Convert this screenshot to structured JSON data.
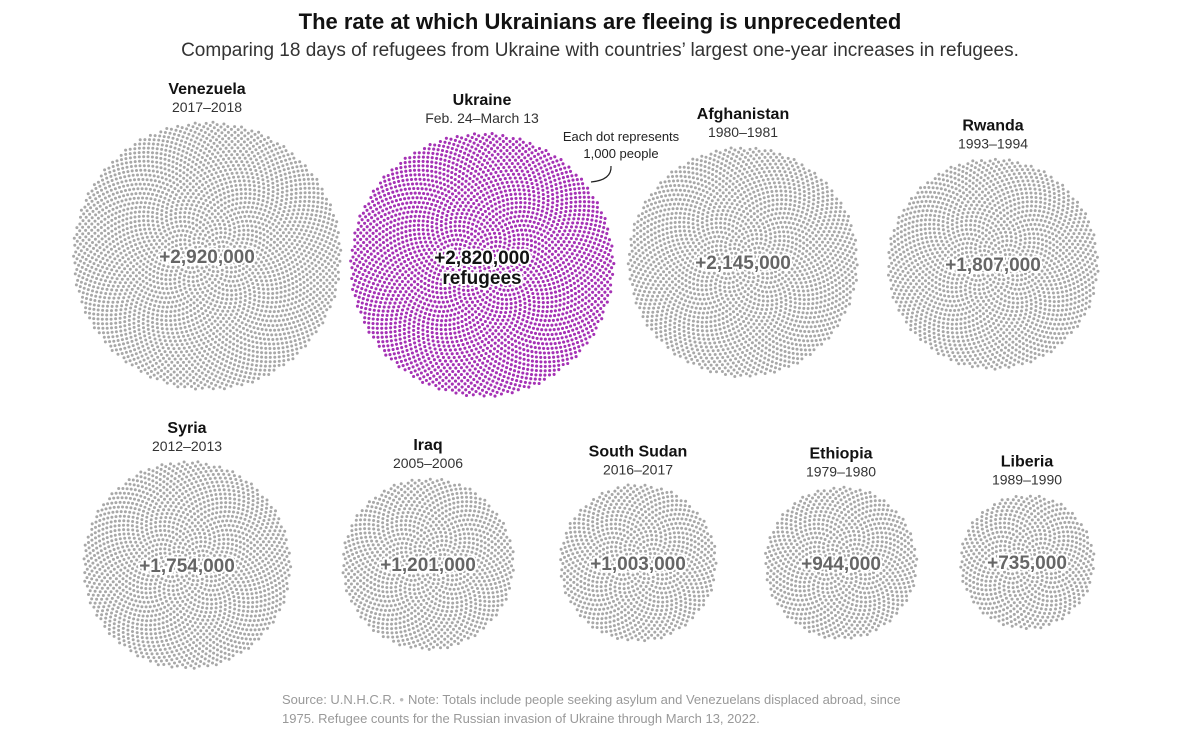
{
  "header": {
    "title": "The rate at which Ukrainians are fleeing is unprecedented",
    "subtitle": "Comparing 18 days of refugees from Ukraine with countries’ largest one-year increases in refugees."
  },
  "annotation": {
    "line1": "Each dot represents",
    "line2": "1,000 people"
  },
  "footer": {
    "source": "Source: U.N.H.C.R.",
    "note": "Note: Totals include people seeking asylum and Venezuelans displaced abroad, since 1975. Refugee counts for the Russian invasion of Ukraine through March 13, 2022."
  },
  "colors": {
    "highlight": "#a532b5",
    "default_dots": "#a8a8a8"
  },
  "chart_data": {
    "type": "dot-cluster",
    "units_per_dot": 1000,
    "series": [
      {
        "country": "Venezuela",
        "period": "2017–2018",
        "value": 2920000,
        "label": "+2,920,000",
        "highlight": false
      },
      {
        "country": "Ukraine",
        "period": "Feb. 24–March 13",
        "value": 2820000,
        "label": "+2,820,000",
        "label2": "refugees",
        "highlight": true
      },
      {
        "country": "Afghanistan",
        "period": "1980–1981",
        "value": 2145000,
        "label": "+2,145,000",
        "highlight": false
      },
      {
        "country": "Rwanda",
        "period": "1993–1994",
        "value": 1807000,
        "label": "+1,807,000",
        "highlight": false
      },
      {
        "country": "Syria",
        "period": "2012–2013",
        "value": 1754000,
        "label": "+1,754,000",
        "highlight": false
      },
      {
        "country": "Iraq",
        "period": "2005–2006",
        "value": 1201000,
        "label": "+1,201,000",
        "highlight": false
      },
      {
        "country": "South Sudan",
        "period": "2016–2017",
        "value": 1003000,
        "label": "+1,003,000",
        "highlight": false
      },
      {
        "country": "Ethiopia",
        "period": "1979–1980",
        "value": 944000,
        "label": "+944,000",
        "highlight": false
      },
      {
        "country": "Liberia",
        "period": "1989–1990",
        "value": 735000,
        "label": "+735,000",
        "highlight": false
      }
    ]
  }
}
